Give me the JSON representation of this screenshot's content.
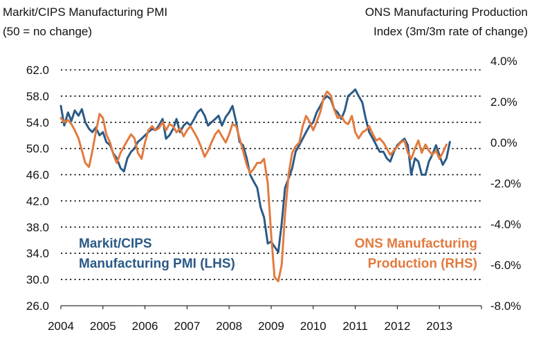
{
  "header": {
    "left_line1": "Markit/CIPS Manufacturing PMI",
    "left_line2": "(50 = no change)",
    "right_line1": "ONS Manufacturing Production",
    "right_line2": "Index (3m/3m rate of change)"
  },
  "chart_data": {
    "type": "line",
    "title": "",
    "left_axis": {
      "ylim": [
        26.0,
        62.0
      ],
      "ticks": [
        "62.0",
        "58.0",
        "54.0",
        "50.0",
        "46.0",
        "42.0",
        "38.0",
        "34.0",
        "30.0",
        "26.0"
      ],
      "tick_values": [
        62,
        58,
        54,
        50,
        46,
        42,
        38,
        34,
        30,
        26
      ]
    },
    "right_axis": {
      "ylim": [
        -8.0,
        4.0
      ],
      "ticks": [
        "4.0%",
        "2.0%",
        "0.0%",
        "-2.0%",
        "-4.0%",
        "-6.0%",
        "-8.0%"
      ],
      "tick_values": [
        4,
        2,
        0,
        -2,
        -4,
        -6,
        -8
      ]
    },
    "x_axis": {
      "xlim": [
        2004.0,
        2014.0
      ],
      "ticks": [
        "2004",
        "2005",
        "2006",
        "2007",
        "2008",
        "2009",
        "2010",
        "2011",
        "2012",
        "2013"
      ],
      "tick_values": [
        2004,
        2005,
        2006,
        2007,
        2008,
        2009,
        2010,
        2011,
        2012,
        2013
      ]
    },
    "grid": "horizontal dotted",
    "series": [
      {
        "name": "Markit/CIPS Manufacturing PMI (LHS)",
        "axis": "left",
        "color": "#2a5a86",
        "x": [
          2004.0,
          2004.08,
          2004.17,
          2004.25,
          2004.33,
          2004.42,
          2004.5,
          2004.58,
          2004.67,
          2004.75,
          2004.83,
          2004.92,
          2005.0,
          2005.08,
          2005.17,
          2005.25,
          2005.33,
          2005.42,
          2005.5,
          2005.58,
          2005.67,
          2005.75,
          2005.83,
          2005.92,
          2006.0,
          2006.08,
          2006.17,
          2006.25,
          2006.33,
          2006.42,
          2006.5,
          2006.58,
          2006.67,
          2006.75,
          2006.83,
          2006.92,
          2007.0,
          2007.08,
          2007.17,
          2007.25,
          2007.33,
          2007.42,
          2007.5,
          2007.58,
          2007.67,
          2007.75,
          2007.83,
          2007.92,
          2008.0,
          2008.08,
          2008.17,
          2008.25,
          2008.33,
          2008.42,
          2008.5,
          2008.58,
          2008.67,
          2008.75,
          2008.83,
          2008.92,
          2009.0,
          2009.08,
          2009.17,
          2009.25,
          2009.33,
          2009.42,
          2009.5,
          2009.58,
          2009.67,
          2009.75,
          2009.83,
          2009.92,
          2010.0,
          2010.08,
          2010.17,
          2010.25,
          2010.33,
          2010.42,
          2010.5,
          2010.58,
          2010.67,
          2010.75,
          2010.83,
          2010.92,
          2011.0,
          2011.08,
          2011.17,
          2011.25,
          2011.33,
          2011.42,
          2011.5,
          2011.58,
          2011.67,
          2011.75,
          2011.83,
          2011.92,
          2012.0,
          2012.08,
          2012.17,
          2012.25,
          2012.33,
          2012.42,
          2012.5,
          2012.58,
          2012.67,
          2012.75,
          2012.83,
          2012.92,
          2013.0,
          2013.08,
          2013.17,
          2013.25
        ],
        "values": [
          56.5,
          53.5,
          55.5,
          54.2,
          55.8,
          55.0,
          56.0,
          54.0,
          53.0,
          52.5,
          53.2,
          52.0,
          52.5,
          51.0,
          50.5,
          49.2,
          48.5,
          47.0,
          46.5,
          48.5,
          49.5,
          50.0,
          51.0,
          51.5,
          52.0,
          52.5,
          53.0,
          52.8,
          53.5,
          54.5,
          51.5,
          52.0,
          53.0,
          54.5,
          52.5,
          53.5,
          54.0,
          53.5,
          54.5,
          55.5,
          56.0,
          55.0,
          53.5,
          54.0,
          54.5,
          55.0,
          53.5,
          54.8,
          55.5,
          56.5,
          54.0,
          51.0,
          50.5,
          48.5,
          46.0,
          45.0,
          44.0,
          41.0,
          39.5,
          35.5,
          35.8,
          35.0,
          34.2,
          38.5,
          44.0,
          45.5,
          47.0,
          49.5,
          50.5,
          51.5,
          52.5,
          53.5,
          54.0,
          55.5,
          56.5,
          57.5,
          58.0,
          57.5,
          56.0,
          55.5,
          54.5,
          55.8,
          58.0,
          58.5,
          59.0,
          58.0,
          57.0,
          54.5,
          52.5,
          51.5,
          50.5,
          49.5,
          49.5,
          48.5,
          48.0,
          49.5,
          50.5,
          51.0,
          51.5,
          50.5,
          46.0,
          48.5,
          48.0,
          46.0,
          46.0,
          48.0,
          49.0,
          50.5,
          49.0,
          47.5,
          48.5,
          51.0
        ]
      },
      {
        "name": "ONS Manufacturing Production (RHS)",
        "axis": "right",
        "color": "#e27a3f",
        "x": [
          2004.0,
          2004.08,
          2004.17,
          2004.25,
          2004.33,
          2004.42,
          2004.5,
          2004.58,
          2004.67,
          2004.75,
          2004.83,
          2004.92,
          2005.0,
          2005.08,
          2005.17,
          2005.25,
          2005.33,
          2005.42,
          2005.5,
          2005.58,
          2005.67,
          2005.75,
          2005.83,
          2005.92,
          2006.0,
          2006.08,
          2006.17,
          2006.25,
          2006.33,
          2006.42,
          2006.5,
          2006.58,
          2006.67,
          2006.75,
          2006.83,
          2006.92,
          2007.0,
          2007.08,
          2007.17,
          2007.25,
          2007.33,
          2007.42,
          2007.5,
          2007.58,
          2007.67,
          2007.75,
          2007.83,
          2007.92,
          2008.0,
          2008.08,
          2008.17,
          2008.25,
          2008.33,
          2008.42,
          2008.5,
          2008.58,
          2008.67,
          2008.75,
          2008.83,
          2008.92,
          2009.0,
          2009.08,
          2009.17,
          2009.25,
          2009.33,
          2009.42,
          2009.5,
          2009.58,
          2009.67,
          2009.75,
          2009.83,
          2009.92,
          2010.0,
          2010.08,
          2010.17,
          2010.25,
          2010.33,
          2010.42,
          2010.5,
          2010.58,
          2010.67,
          2010.75,
          2010.83,
          2010.92,
          2011.0,
          2011.08,
          2011.17,
          2011.25,
          2011.33,
          2011.42,
          2011.5,
          2011.58,
          2011.67,
          2011.75,
          2011.83,
          2011.92,
          2012.0,
          2012.08,
          2012.17,
          2012.25,
          2012.33,
          2012.42,
          2012.5,
          2012.58,
          2012.67,
          2012.75,
          2012.83,
          2012.92,
          2013.0,
          2013.08,
          2013.17
        ],
        "values": [
          1.2,
          1.0,
          1.1,
          0.9,
          0.6,
          0.2,
          -0.4,
          -1.0,
          -1.2,
          -0.4,
          0.5,
          1.4,
          1.2,
          0.4,
          0.0,
          -0.6,
          -1.0,
          -0.5,
          -0.2,
          0.1,
          0.4,
          0.2,
          -0.5,
          -0.8,
          0.0,
          0.6,
          0.8,
          0.6,
          0.7,
          1.0,
          0.6,
          0.9,
          0.8,
          0.5,
          0.7,
          0.3,
          0.6,
          0.8,
          0.5,
          0.2,
          -0.2,
          -0.7,
          -0.4,
          0.0,
          0.4,
          0.6,
          0.3,
          0.0,
          0.4,
          0.9,
          0.8,
          0.2,
          -0.4,
          -1.1,
          -1.5,
          -1.3,
          -1.0,
          -1.0,
          -0.8,
          -2.0,
          -4.5,
          -6.6,
          -6.8,
          -6.0,
          -3.5,
          -1.5,
          -0.5,
          -0.2,
          0.0,
          0.8,
          1.3,
          1.0,
          0.6,
          1.0,
          1.5,
          2.2,
          2.5,
          2.3,
          1.6,
          1.2,
          1.3,
          1.0,
          0.9,
          1.3,
          0.5,
          0.2,
          0.5,
          0.6,
          0.8,
          0.4,
          0.1,
          0.2,
          0.0,
          -0.3,
          -0.6,
          -0.4,
          -0.2,
          0.0,
          0.1,
          -0.5,
          -0.8,
          -0.3,
          0.1,
          -0.5,
          -0.1,
          -0.4,
          -0.6,
          -0.4,
          -0.8,
          -0.5,
          -0.1
        ]
      }
    ],
    "annotations": [
      {
        "lines": [
          "Markit/CIPS",
          "Manufacturing PMI (LHS)"
        ],
        "color": "#2a5a86"
      },
      {
        "lines": [
          "ONS Manufacturing",
          "Production (RHS)"
        ],
        "color": "#e27a3f"
      }
    ]
  }
}
